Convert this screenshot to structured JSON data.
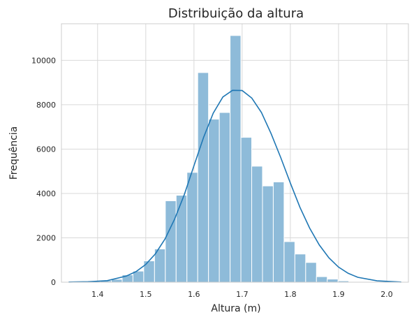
{
  "chart_data": {
    "type": "bar",
    "title": "Distribuição da altura",
    "xlabel": "Altura (m)",
    "ylabel": "Frequência",
    "xlim": [
      1.325,
      2.045
    ],
    "ylim": [
      0,
      11650
    ],
    "xticks": [
      1.4,
      1.5,
      1.6,
      1.7,
      1.8,
      1.9,
      2.0
    ],
    "xtick_labels": [
      "1.4",
      "1.5",
      "1.6",
      "1.7",
      "1.8",
      "1.9",
      "2.0"
    ],
    "yticks": [
      0,
      2000,
      4000,
      6000,
      8000,
      10000
    ],
    "ytick_labels": [
      "0",
      "2000",
      "4000",
      "6000",
      "8000",
      "10000"
    ],
    "grid": true,
    "bin_edges": [
      1.339,
      1.3614,
      1.3838,
      1.4062,
      1.4286,
      1.451,
      1.4734,
      1.4958,
      1.5182,
      1.5406,
      1.563,
      1.5854,
      1.6078,
      1.6302,
      1.6526,
      1.675,
      1.6974,
      1.7198,
      1.7422,
      1.7646,
      1.787,
      1.8094,
      1.8318,
      1.8542,
      1.8766,
      1.899,
      1.9214,
      1.9438,
      1.9662,
      1.9886,
      2.011,
      2.0334
    ],
    "values": [
      10,
      20,
      40,
      70,
      130,
      330,
      500,
      960,
      1500,
      3670,
      3920,
      4950,
      9450,
      7350,
      7650,
      11120,
      6530,
      5230,
      4340,
      4520,
      1830,
      1270,
      890,
      250,
      140,
      60,
      30,
      15,
      8,
      4,
      2
    ],
    "kde": {
      "x": [
        1.34,
        1.38,
        1.42,
        1.46,
        1.48,
        1.5,
        1.52,
        1.54,
        1.56,
        1.58,
        1.6,
        1.62,
        1.64,
        1.66,
        1.68,
        1.7,
        1.72,
        1.74,
        1.76,
        1.78,
        1.8,
        1.82,
        1.84,
        1.86,
        1.88,
        1.9,
        1.92,
        1.94,
        1.98,
        2.03
      ],
      "y": [
        5,
        20,
        70,
        280,
        480,
        800,
        1280,
        1950,
        2850,
        3950,
        5250,
        6530,
        7620,
        8350,
        8650,
        8640,
        8300,
        7650,
        6700,
        5620,
        4470,
        3370,
        2440,
        1680,
        1100,
        680,
        400,
        220,
        60,
        5
      ]
    },
    "colors": {
      "bar_fill": "#8ebbd9",
      "bar_edge": "#ffffff",
      "line": "#1f77b4",
      "grid": "#d9d9d9",
      "frame": "#cccccc"
    }
  }
}
